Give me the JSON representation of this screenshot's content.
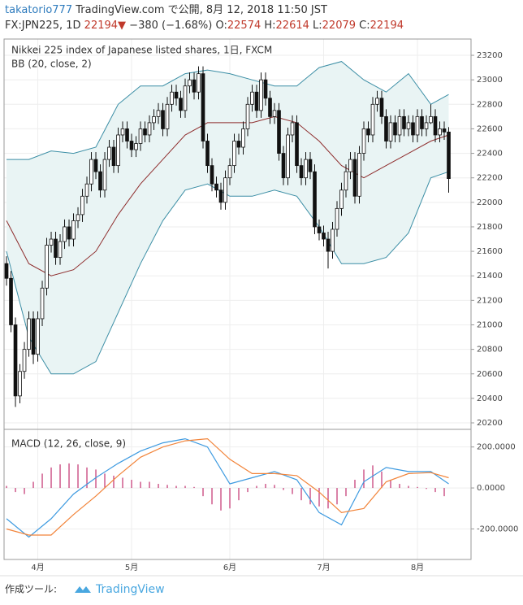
{
  "header": {
    "line1_user": "takatorio777",
    "line1_rest": "TradingView.com で公開, 8月 12, 2018 11:50 JST",
    "symbol": "FX:JPN225, 1D",
    "last": "22194",
    "arrow": "▼",
    "change": "−380 (−1.68%)",
    "ohlc": [
      {
        "label": "O:",
        "value": "22574"
      },
      {
        "label": "H:",
        "value": "22614"
      },
      {
        "label": "L:",
        "value": "22079"
      },
      {
        "label": "C:",
        "value": "22194"
      }
    ]
  },
  "chart_data": [
    {
      "type": "candlestick",
      "title": "Nikkei 225 index of Japanese listed shares, 1日, FXCM",
      "indicator": "BB (20, close, 2)",
      "up_color": "#ffffff",
      "down_color": "#111111",
      "open": [
        21500,
        21380,
        21000,
        20420,
        20620,
        20800,
        21050,
        20760,
        21050,
        21300,
        21650,
        21700,
        21550,
        21680,
        21800,
        21700,
        21850,
        21900,
        22050,
        22150,
        22350,
        22250,
        22100,
        22350,
        22450,
        22300,
        22550,
        22600,
        22500,
        22430,
        22480,
        22600,
        22550,
        22650,
        22700,
        22750,
        22600,
        22800,
        22900,
        22850,
        22750,
        22950,
        23000,
        22900,
        23050,
        22500,
        22300,
        22150,
        22100,
        22000,
        22200,
        22300,
        22500,
        22450,
        22600,
        22800,
        22900,
        22750,
        23000,
        22850,
        22700,
        22750,
        22400,
        22200,
        22550,
        22650,
        22300,
        22200,
        22350,
        22250,
        21800,
        21750,
        21700,
        21600,
        21780,
        21950,
        22100,
        22250,
        22350,
        22050,
        22400,
        22600,
        22550,
        22800,
        22850,
        22700,
        22500,
        22650,
        22550,
        22700,
        22600,
        22650,
        22550,
        22700,
        22600,
        22650,
        22700,
        22550,
        22600,
        22574
      ],
      "high": [
        21560,
        21440,
        21060,
        20680,
        20860,
        21110,
        21110,
        21110,
        21360,
        21710,
        21760,
        21760,
        21740,
        21860,
        21860,
        21910,
        21960,
        22110,
        22210,
        22410,
        22410,
        22310,
        22410,
        22510,
        22510,
        22610,
        22660,
        22660,
        22560,
        22540,
        22660,
        22660,
        22710,
        22760,
        22810,
        22810,
        22860,
        22960,
        22960,
        22910,
        23010,
        23060,
        23060,
        23110,
        23110,
        22560,
        22360,
        22210,
        22160,
        22260,
        22360,
        22560,
        22560,
        22660,
        22860,
        22960,
        22960,
        23060,
        23060,
        22910,
        22810,
        22810,
        22460,
        22610,
        22710,
        22710,
        22360,
        22410,
        22410,
        22310,
        21860,
        21810,
        21760,
        21840,
        22010,
        22160,
        22310,
        22410,
        22410,
        22460,
        22660,
        22660,
        22860,
        22910,
        22910,
        22760,
        22710,
        22710,
        22760,
        22760,
        22710,
        22710,
        22760,
        22760,
        22710,
        22800,
        22760,
        22660,
        22660,
        22614
      ],
      "low": [
        21320,
        20940,
        20330,
        20360,
        20560,
        20740,
        20680,
        20700,
        20990,
        21240,
        21590,
        21490,
        21490,
        21620,
        21640,
        21640,
        21790,
        21840,
        21990,
        22090,
        22190,
        22040,
        22040,
        22290,
        22240,
        22240,
        22490,
        22440,
        22370,
        22370,
        22420,
        22490,
        22490,
        22590,
        22640,
        22540,
        22540,
        22740,
        22790,
        22690,
        22690,
        22890,
        22840,
        22840,
        22440,
        22240,
        22090,
        22040,
        21940,
        21940,
        22140,
        22240,
        22390,
        22390,
        22540,
        22740,
        22690,
        22690,
        22790,
        22640,
        22640,
        22340,
        22140,
        22140,
        22490,
        22240,
        22140,
        22140,
        22190,
        21740,
        21690,
        21640,
        21460,
        21540,
        21720,
        21890,
        22040,
        22190,
        21990,
        21990,
        22340,
        22490,
        22490,
        22740,
        22640,
        22440,
        22440,
        22490,
        22490,
        22540,
        22540,
        22490,
        22490,
        22540,
        22540,
        22640,
        22490,
        22490,
        22510,
        22079
      ],
      "close": [
        21380,
        21000,
        20420,
        20620,
        20800,
        21050,
        20760,
        21050,
        21300,
        21650,
        21700,
        21550,
        21680,
        21800,
        21700,
        21850,
        21900,
        22050,
        22150,
        22350,
        22250,
        22100,
        22350,
        22450,
        22300,
        22550,
        22600,
        22500,
        22430,
        22480,
        22600,
        22550,
        22650,
        22700,
        22750,
        22600,
        22800,
        22900,
        22850,
        22750,
        22950,
        23000,
        22900,
        23050,
        22500,
        22300,
        22150,
        22100,
        22000,
        22200,
        22300,
        22500,
        22450,
        22600,
        22800,
        22900,
        22750,
        23000,
        22850,
        22700,
        22750,
        22400,
        22200,
        22550,
        22650,
        22300,
        22200,
        22350,
        22250,
        21800,
        21750,
        21700,
        21600,
        21780,
        21950,
        22100,
        22250,
        22350,
        22050,
        22400,
        22600,
        22550,
        22800,
        22850,
        22700,
        22500,
        22650,
        22550,
        22700,
        22600,
        22650,
        22550,
        22700,
        22600,
        22650,
        22700,
        22550,
        22600,
        22574,
        22194
      ],
      "band_x": [
        0,
        5,
        10,
        15,
        20,
        25,
        30,
        35,
        40,
        45,
        50,
        55,
        60,
        65,
        70,
        75,
        80,
        85,
        90,
        95,
        99
      ],
      "band_fill": "#e9f4f4",
      "bands": [
        {
          "color": "#3b8ea5",
          "values": [
            22350,
            22350,
            22420,
            22400,
            22450,
            22800,
            22950,
            22950,
            23050,
            23080,
            23050,
            23000,
            22950,
            22950,
            23100,
            23150,
            23000,
            22900,
            23050,
            22800,
            22880
          ]
        },
        {
          "color": "#8e2c2c",
          "values": [
            21850,
            21500,
            21400,
            21450,
            21600,
            21900,
            22150,
            22350,
            22550,
            22650,
            22650,
            22650,
            22700,
            22650,
            22500,
            22300,
            22200,
            22300,
            22400,
            22500,
            22550
          ]
        },
        {
          "color": "#3b8ea5",
          "values": [
            21600,
            20900,
            20600,
            20600,
            20700,
            21100,
            21500,
            21850,
            22100,
            22150,
            22050,
            22050,
            22100,
            22050,
            21800,
            21500,
            21500,
            21550,
            21750,
            22200,
            22250
          ]
        }
      ],
      "xlim": [
        -0.55,
        104
      ],
      "ylim": [
        20147,
        23333
      ],
      "yticks": [
        20200,
        20400,
        20600,
        20800,
        21000,
        21200,
        21400,
        21600,
        21800,
        22000,
        22200,
        22400,
        22600,
        22800,
        23000,
        23200
      ],
      "xticks": [
        {
          "value": 7,
          "label": "4月"
        },
        {
          "value": 28,
          "label": "5月"
        },
        {
          "value": 50,
          "label": "6月"
        },
        {
          "value": 71,
          "label": "7月"
        },
        {
          "value": 92,
          "label": "8月"
        }
      ],
      "grid": true
    },
    {
      "type": "macd",
      "title": "MACD (12, 26, close, 9)",
      "x": [
        0,
        5,
        10,
        15,
        20,
        25,
        30,
        35,
        40,
        45,
        50,
        55,
        60,
        65,
        70,
        75,
        80,
        85,
        90,
        95,
        99
      ],
      "series": [
        {
          "color": "#3d9ae0",
          "values": [
            -150,
            -240,
            -150,
            -30,
            50,
            120,
            180,
            220,
            240,
            200,
            20,
            50,
            80,
            40,
            -120,
            -180,
            30,
            100,
            80,
            80,
            20
          ]
        },
        {
          "color": "#f2843a",
          "values": [
            -200,
            -230,
            -230,
            -130,
            -40,
            60,
            150,
            200,
            230,
            240,
            140,
            70,
            70,
            60,
            -20,
            -120,
            -100,
            30,
            70,
            75,
            50
          ]
        }
      ],
      "hist_x": [
        0,
        2,
        4,
        6,
        8,
        10,
        12,
        14,
        16,
        18,
        20,
        22,
        24,
        26,
        28,
        30,
        32,
        34,
        36,
        38,
        40,
        42,
        44,
        46,
        48,
        50,
        52,
        54,
        56,
        58,
        60,
        62,
        64,
        66,
        68,
        70,
        72,
        74,
        76,
        78,
        80,
        82,
        84,
        86,
        88,
        90,
        92,
        94,
        96,
        98
      ],
      "hist": [
        10,
        -20,
        -30,
        30,
        70,
        100,
        115,
        120,
        115,
        100,
        90,
        70,
        60,
        50,
        40,
        30,
        30,
        20,
        15,
        10,
        10,
        5,
        -40,
        -80,
        -110,
        -100,
        -60,
        -20,
        10,
        20,
        15,
        -10,
        -30,
        -60,
        -80,
        -90,
        -100,
        -80,
        -40,
        40,
        90,
        110,
        80,
        40,
        20,
        10,
        5,
        -5,
        -20,
        -40
      ],
      "hist_color": "#c2306e",
      "xlim": [
        -0.55,
        104
      ],
      "ylim": [
        -349,
        286
      ],
      "yticks": [
        {
          "value": 200,
          "label": "200.0000"
        },
        {
          "value": 0,
          "label": "0.0000"
        },
        {
          "value": -200,
          "label": "-200.0000"
        }
      ],
      "grid": true
    }
  ],
  "footer": {
    "made_with": "作成ツール:",
    "brand": "TradingView"
  }
}
